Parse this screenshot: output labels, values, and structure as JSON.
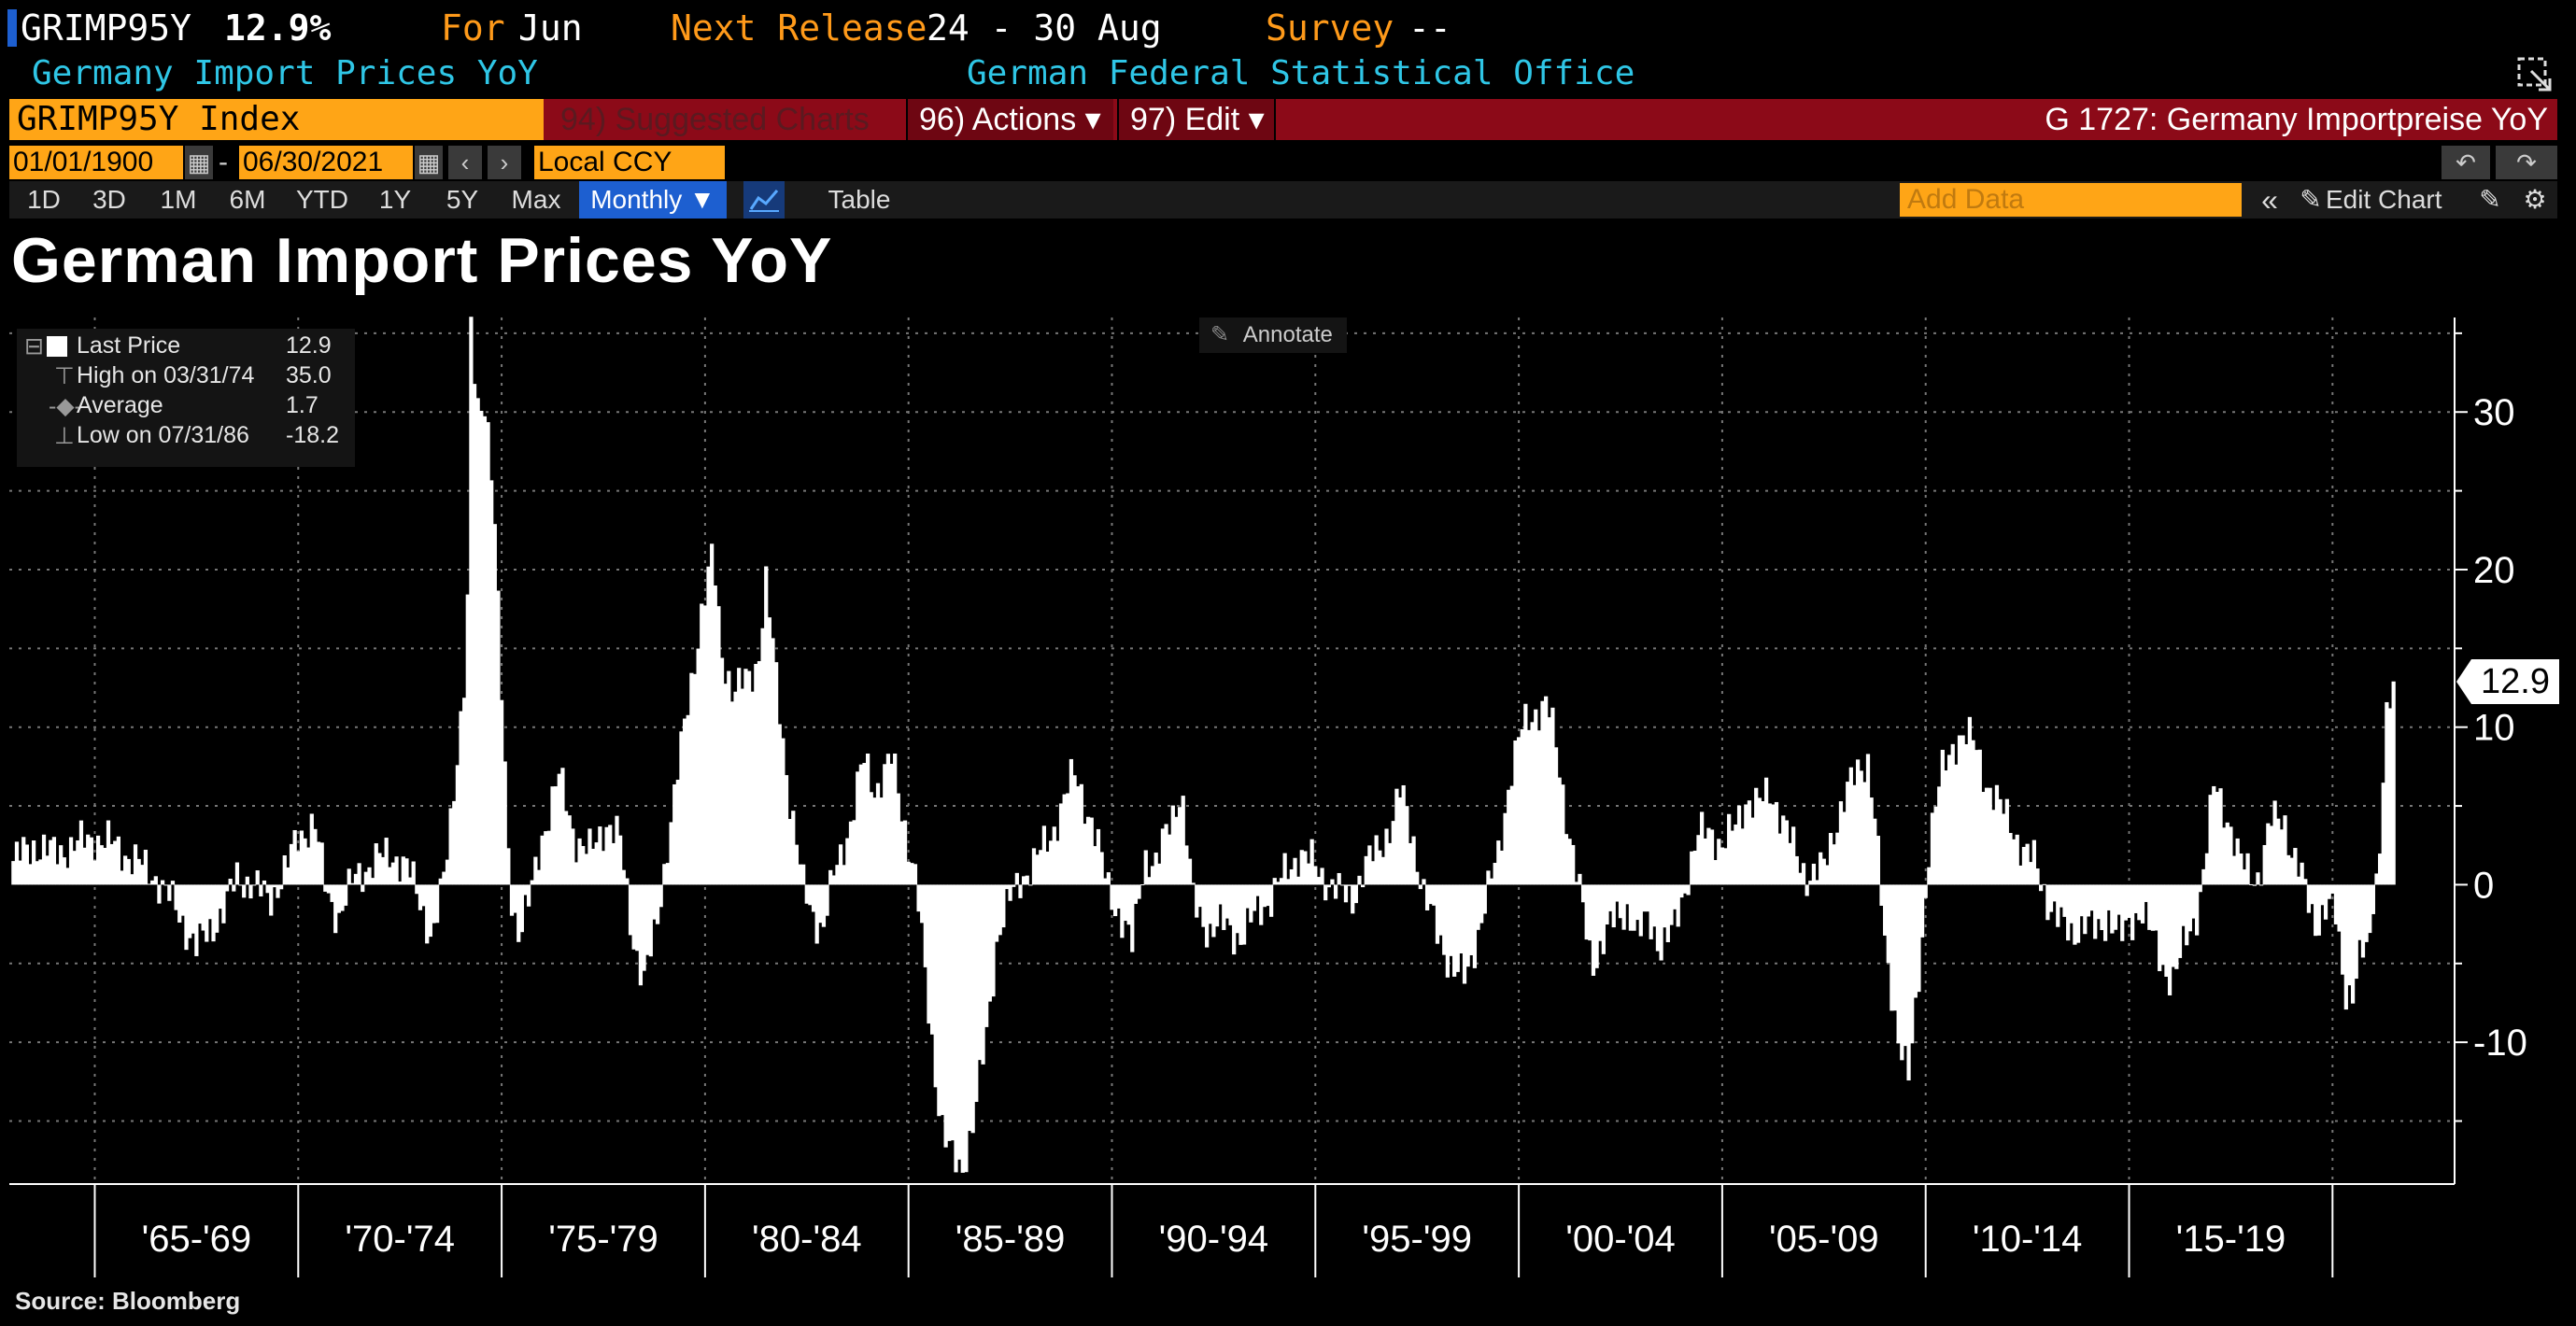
{
  "header": {
    "ticker": "GRIMP95Y",
    "last_value": "12.9%",
    "for_label": "For",
    "for_value": "Jun",
    "next_release_label": "Next Release",
    "next_release_value": "24 - 30 Aug",
    "survey_label": "Survey",
    "survey_value": "--",
    "description": "Germany Import Prices YoY",
    "source_agency": "German Federal Statistical Office"
  },
  "toolbar": {
    "security": "GRIMP95Y Index",
    "suggested_charts": "94) Suggested Charts",
    "actions": "96) Actions ▾",
    "edit": "97) Edit ▾",
    "chart_id_title": "G 1727: Germany Importpreise YoY",
    "start_date": "01/01/1900",
    "date_sep": "-",
    "end_date": "06/30/2021",
    "currency": "Local CCY",
    "ranges": [
      "1D",
      "3D",
      "1M",
      "6M",
      "YTD",
      "1Y",
      "5Y",
      "Max"
    ],
    "periodicity": "Monthly ▼",
    "table_label": "Table",
    "add_data_placeholder": "Add Data",
    "edit_chart": "Edit Chart"
  },
  "icons": [
    "calendar-icon",
    "arrow-left-icon",
    "arrow-right-icon",
    "undo-icon",
    "redo-icon",
    "line-chart-icon",
    "collapse-icon",
    "pencil-icon",
    "settings-gear-icon",
    "expand-icon"
  ],
  "colors": {
    "accent_orange": "#ffa516",
    "toolbar_red": "#8c0a18",
    "cyan_text": "#2fc6e6",
    "monthly_blue": "#1d5fd0",
    "bars": "#ffffff",
    "background": "#000000"
  },
  "annotate_label": "Annotate",
  "legend": {
    "last_price_label": "Last Price",
    "last_price_value": "12.9",
    "high_label": "High on 03/31/74",
    "high_value": "35.0",
    "average_label": "Average",
    "average_value": "1.7",
    "low_label": "Low on 07/31/86",
    "low_value": "-18.2"
  },
  "last_value_tag": "12.9",
  "source": "Source: Bloomberg",
  "chart_data": {
    "type": "bar",
    "title": "German Import Prices YoY",
    "xlabel": "",
    "ylabel": "",
    "ylim": [
      -19,
      36
    ],
    "y_ticks": [
      30,
      20,
      10,
      0,
      -10
    ],
    "x_range": [
      1962.9,
      2023.0
    ],
    "x_category_labels": [
      {
        "label": "'65-'69",
        "start": 1965,
        "end": 1970
      },
      {
        "label": "'70-'74",
        "start": 1970,
        "end": 1975
      },
      {
        "label": "'75-'79",
        "start": 1975,
        "end": 1980
      },
      {
        "label": "'80-'84",
        "start": 1980,
        "end": 1985
      },
      {
        "label": "'85-'89",
        "start": 1985,
        "end": 1990
      },
      {
        "label": "'90-'94",
        "start": 1990,
        "end": 1995
      },
      {
        "label": "'95-'99",
        "start": 1995,
        "end": 2000
      },
      {
        "label": "'00-'04",
        "start": 2000,
        "end": 2005
      },
      {
        "label": "'05-'09",
        "start": 2005,
        "end": 2010
      },
      {
        "label": "'10-'14",
        "start": 2010,
        "end": 2015
      },
      {
        "label": "'15-'19",
        "start": 2015,
        "end": 2020
      }
    ],
    "grid": true,
    "legend_position": "top-left",
    "series": [
      {
        "name": "Last Price",
        "frequency": "monthly",
        "points": [
          [
            1963.0,
            1.5
          ],
          [
            1963.5,
            2.5
          ],
          [
            1964.0,
            2.0
          ],
          [
            1964.5,
            2.5
          ],
          [
            1965.0,
            3.0
          ],
          [
            1965.5,
            2.5
          ],
          [
            1966.0,
            1.5
          ],
          [
            1966.5,
            0.5
          ],
          [
            1967.0,
            -1.5
          ],
          [
            1967.5,
            -4.0
          ],
          [
            1967.8,
            -3.0
          ],
          [
            1968.2,
            -1.5
          ],
          [
            1968.5,
            0.5
          ],
          [
            1968.9,
            0.0
          ],
          [
            1969.3,
            -1.0
          ],
          [
            1969.7,
            1.0
          ],
          [
            1970.0,
            3.0
          ],
          [
            1970.4,
            4.0
          ],
          [
            1970.7,
            -0.5
          ],
          [
            1971.0,
            -2.0
          ],
          [
            1971.4,
            0.5
          ],
          [
            1971.9,
            1.5
          ],
          [
            1972.3,
            2.0
          ],
          [
            1972.7,
            1.0
          ],
          [
            1973.0,
            -1.0
          ],
          [
            1973.3,
            -3.5
          ],
          [
            1973.6,
            0.5
          ],
          [
            1973.9,
            8.0
          ],
          [
            1974.1,
            13.0
          ],
          [
            1974.2,
            20.0
          ],
          [
            1974.25,
            35.0
          ],
          [
            1974.4,
            30.0
          ],
          [
            1974.6,
            31.0
          ],
          [
            1974.8,
            25.0
          ],
          [
            1975.0,
            12.0
          ],
          [
            1975.2,
            0.0
          ],
          [
            1975.4,
            -3.0
          ],
          [
            1975.7,
            -1.0
          ],
          [
            1976.0,
            3.0
          ],
          [
            1976.4,
            7.0
          ],
          [
            1976.8,
            3.0
          ],
          [
            1977.2,
            2.0
          ],
          [
            1977.6,
            4.0
          ],
          [
            1977.9,
            3.0
          ],
          [
            1978.2,
            -3.0
          ],
          [
            1978.5,
            -6.0
          ],
          [
            1978.8,
            -3.0
          ],
          [
            1979.1,
            3.0
          ],
          [
            1979.5,
            10.0
          ],
          [
            1979.9,
            17.0
          ],
          [
            1980.2,
            21.0
          ],
          [
            1980.4,
            15.0
          ],
          [
            1980.7,
            12.0
          ],
          [
            1981.0,
            13.0
          ],
          [
            1981.3,
            14.0
          ],
          [
            1981.5,
            19.0
          ],
          [
            1981.8,
            12.0
          ],
          [
            1982.1,
            5.0
          ],
          [
            1982.4,
            0.0
          ],
          [
            1982.7,
            -2.0
          ],
          [
            1982.9,
            -3.0
          ],
          [
            1983.2,
            1.0
          ],
          [
            1983.6,
            4.0
          ],
          [
            1983.9,
            8.0
          ],
          [
            1984.2,
            6.0
          ],
          [
            1984.6,
            8.0
          ],
          [
            1984.9,
            4.0
          ],
          [
            1985.2,
            0.0
          ],
          [
            1985.5,
            -8.0
          ],
          [
            1985.8,
            -15.0
          ],
          [
            1986.0,
            -17.0
          ],
          [
            1986.3,
            -18.2
          ],
          [
            1986.6,
            -15.0
          ],
          [
            1986.9,
            -10.0
          ],
          [
            1987.2,
            -3.0
          ],
          [
            1987.5,
            -1.0
          ],
          [
            1987.8,
            0.5
          ],
          [
            1988.1,
            1.5
          ],
          [
            1988.5,
            3.0
          ],
          [
            1988.9,
            6.0
          ],
          [
            1989.1,
            7.0
          ],
          [
            1989.5,
            4.0
          ],
          [
            1989.9,
            0.0
          ],
          [
            1990.2,
            -2.0
          ],
          [
            1990.5,
            -4.0
          ],
          [
            1990.8,
            2.0
          ],
          [
            1991.1,
            1.0
          ],
          [
            1991.4,
            4.0
          ],
          [
            1991.7,
            6.0
          ],
          [
            1992.0,
            -1.0
          ],
          [
            1992.4,
            -3.0
          ],
          [
            1992.8,
            -2.5
          ],
          [
            1993.2,
            -3.5
          ],
          [
            1993.6,
            -1.5
          ],
          [
            1993.9,
            -1.0
          ],
          [
            1994.2,
            0.5
          ],
          [
            1994.6,
            2.0
          ],
          [
            1994.9,
            1.5
          ],
          [
            1995.2,
            0.5
          ],
          [
            1995.6,
            -0.5
          ],
          [
            1995.9,
            -1.0
          ],
          [
            1996.2,
            1.0
          ],
          [
            1996.6,
            2.5
          ],
          [
            1996.9,
            4.0
          ],
          [
            1997.1,
            6.0
          ],
          [
            1997.4,
            3.0
          ],
          [
            1997.7,
            -1.0
          ],
          [
            1998.0,
            -3.0
          ],
          [
            1998.4,
            -5.5
          ],
          [
            1998.7,
            -6.0
          ],
          [
            1998.9,
            -4.0
          ],
          [
            1999.2,
            -1.0
          ],
          [
            1999.5,
            2.0
          ],
          [
            1999.8,
            7.0
          ],
          [
            2000.1,
            10.0
          ],
          [
            2000.4,
            11.0
          ],
          [
            2000.7,
            11.5
          ],
          [
            2000.9,
            9.0
          ],
          [
            2001.2,
            4.0
          ],
          [
            2001.5,
            -0.5
          ],
          [
            2001.8,
            -5.0
          ],
          [
            2002.1,
            -3.5
          ],
          [
            2002.4,
            -2.0
          ],
          [
            2002.7,
            -1.5
          ],
          [
            2002.9,
            -3.5
          ],
          [
            2003.2,
            -2.0
          ],
          [
            2003.5,
            -4.0
          ],
          [
            2003.8,
            -3.0
          ],
          [
            2004.1,
            0.0
          ],
          [
            2004.4,
            3.0
          ],
          [
            2004.7,
            3.5
          ],
          [
            2005.0,
            2.5
          ],
          [
            2005.3,
            3.5
          ],
          [
            2005.6,
            5.5
          ],
          [
            2005.9,
            5.0
          ],
          [
            2006.2,
            6.0
          ],
          [
            2006.5,
            4.0
          ],
          [
            2006.8,
            2.0
          ],
          [
            2007.1,
            0.5
          ],
          [
            2007.5,
            1.0
          ],
          [
            2007.8,
            4.0
          ],
          [
            2008.1,
            6.0
          ],
          [
            2008.4,
            7.5
          ],
          [
            2008.6,
            8.0
          ],
          [
            2008.8,
            3.0
          ],
          [
            2009.0,
            -4.0
          ],
          [
            2009.3,
            -9.0
          ],
          [
            2009.6,
            -12.5
          ],
          [
            2009.9,
            -4.0
          ],
          [
            2010.1,
            3.0
          ],
          [
            2010.4,
            7.0
          ],
          [
            2010.7,
            9.0
          ],
          [
            2010.9,
            9.5
          ],
          [
            2011.2,
            9.0
          ],
          [
            2011.5,
            6.5
          ],
          [
            2011.8,
            5.0
          ],
          [
            2012.1,
            4.0
          ],
          [
            2012.4,
            2.0
          ],
          [
            2012.7,
            1.5
          ],
          [
            2013.0,
            -1.0
          ],
          [
            2013.3,
            -2.5
          ],
          [
            2013.6,
            -3.0
          ],
          [
            2013.9,
            -2.5
          ],
          [
            2014.2,
            -3.0
          ],
          [
            2014.5,
            -2.0
          ],
          [
            2014.8,
            -3.5
          ],
          [
            2015.0,
            -2.5
          ],
          [
            2015.3,
            -1.5
          ],
          [
            2015.6,
            -3.5
          ],
          [
            2015.9,
            -5.5
          ],
          [
            2016.1,
            -6.0
          ],
          [
            2016.4,
            -3.5
          ],
          [
            2016.7,
            -1.5
          ],
          [
            2016.9,
            2.0
          ],
          [
            2017.1,
            6.5
          ],
          [
            2017.4,
            4.5
          ],
          [
            2017.7,
            1.5
          ],
          [
            2017.9,
            1.0
          ],
          [
            2018.2,
            0.5
          ],
          [
            2018.5,
            4.0
          ],
          [
            2018.8,
            4.5
          ],
          [
            2019.0,
            2.0
          ],
          [
            2019.3,
            0.0
          ],
          [
            2019.6,
            -2.5
          ],
          [
            2019.9,
            -1.5
          ],
          [
            2020.1,
            -2.0
          ],
          [
            2020.3,
            -6.5
          ],
          [
            2020.5,
            -7.0
          ],
          [
            2020.7,
            -4.5
          ],
          [
            2020.9,
            -4.0
          ],
          [
            2021.0,
            -0.5
          ],
          [
            2021.15,
            1.5
          ],
          [
            2021.3,
            10.0
          ],
          [
            2021.45,
            11.5
          ],
          [
            2021.5,
            12.9
          ]
        ]
      }
    ]
  }
}
